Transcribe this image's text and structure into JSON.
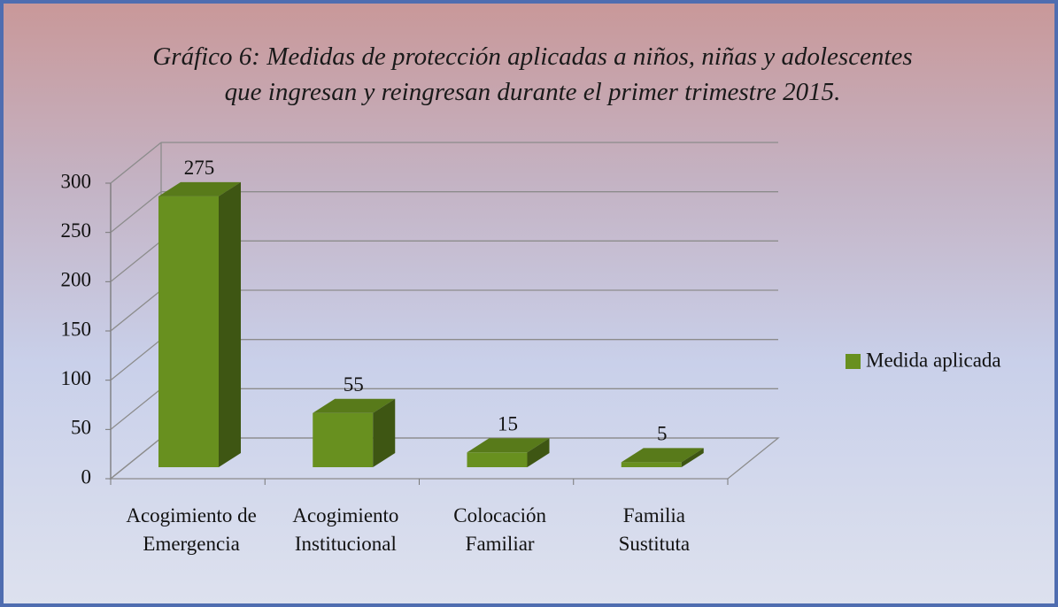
{
  "chart_data": {
    "type": "bar",
    "title": [
      "Gráfico 6: Medidas de protección aplicadas a niños, niñas y adolescentes",
      "que ingresan y reingresan durante el primer trimestre 2015."
    ],
    "categories": [
      "Acogimiento de Emergencia",
      "Acogimiento Institucional",
      "Colocación Familiar",
      "Familia Sustituta"
    ],
    "series": [
      {
        "name": "Medida aplicada",
        "color": "#68901f",
        "values": [
          275,
          55,
          15,
          5
        ]
      }
    ],
    "ylim": [
      0,
      300
    ],
    "yticks": [
      0,
      50,
      100,
      150,
      200,
      250,
      300
    ],
    "grid": true,
    "legend": "right"
  }
}
